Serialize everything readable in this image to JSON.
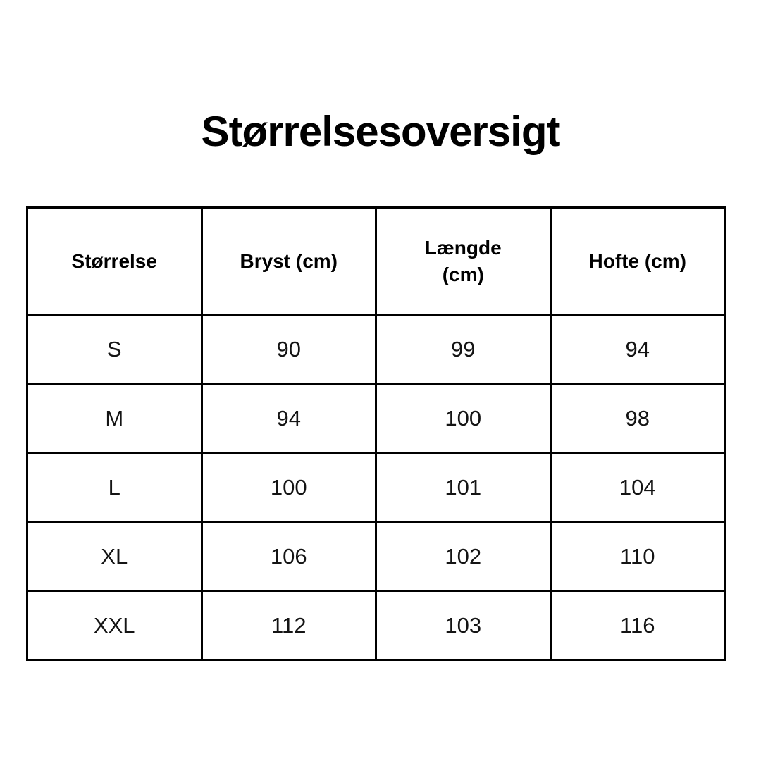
{
  "page": {
    "title": "Størrelsesoversigt",
    "background_color": "#ffffff",
    "border_color": "#000000",
    "text_color": "#000000"
  },
  "chart_data": {
    "type": "table",
    "title": "Størrelsesoversigt",
    "columns": [
      "Størrelse",
      "Bryst (cm)",
      "Længde\n(cm)",
      "Hofte (cm)"
    ],
    "rows": [
      [
        "S",
        "90",
        "99",
        "94"
      ],
      [
        "M",
        "94",
        "100",
        "98"
      ],
      [
        "L",
        "100",
        "101",
        "104"
      ],
      [
        "XL",
        "106",
        "102",
        "110"
      ],
      [
        "XXL",
        "112",
        "103",
        "116"
      ]
    ],
    "layout": {
      "columns_equal_width": true,
      "header_bold": true,
      "grid": "all-borders"
    }
  }
}
